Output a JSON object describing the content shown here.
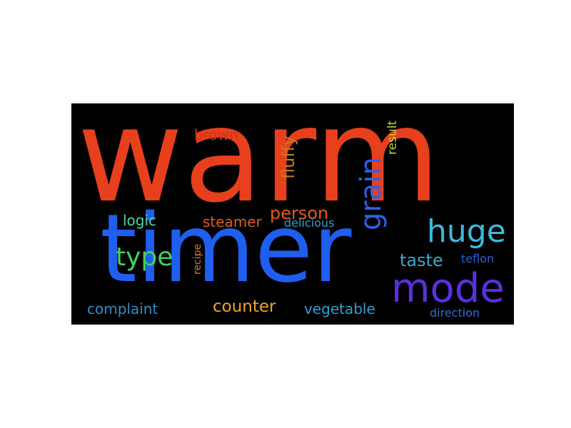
{
  "wordcloud": {
    "background": "#000000",
    "words": {
      "warm": {
        "text": "warm",
        "color": "#e8401c"
      },
      "timer": {
        "text": "timer",
        "color": "#1f5ff0"
      },
      "mode": {
        "text": "mode",
        "color": "#5a2fe0"
      },
      "huge": {
        "text": "huge",
        "color": "#3cb8dc"
      },
      "grain": {
        "text": "grain",
        "color": "#2a5fe8"
      },
      "type": {
        "text": "type",
        "color": "#3fd35a"
      },
      "person": {
        "text": "person",
        "color": "#e45c1a"
      },
      "fluffy": {
        "text": "fluffy",
        "color": "#c87a1a"
      },
      "counter": {
        "text": "counter",
        "color": "#f0a81e"
      },
      "taste": {
        "text": "taste",
        "color": "#3aa9c9"
      },
      "complaint": {
        "text": "complaint",
        "color": "#2f8fc8"
      },
      "vegetable": {
        "text": "vegetable",
        "color": "#2aa0d4"
      },
      "logic": {
        "text": "logic",
        "color": "#45d6b0"
      },
      "steamer": {
        "text": "steamer",
        "color": "#e05a1c"
      },
      "brown": {
        "text": "brown",
        "color": "#d0321a"
      },
      "delicious": {
        "text": "delicious",
        "color": "#2fa0cc"
      },
      "result": {
        "text": "result",
        "color": "#b7d832"
      },
      "teflon": {
        "text": "teflon",
        "color": "#2a5fd8"
      },
      "direction": {
        "text": "direction",
        "color": "#2c6fd4"
      },
      "recipe": {
        "text": "recipe",
        "color": "#e07a20"
      }
    }
  }
}
